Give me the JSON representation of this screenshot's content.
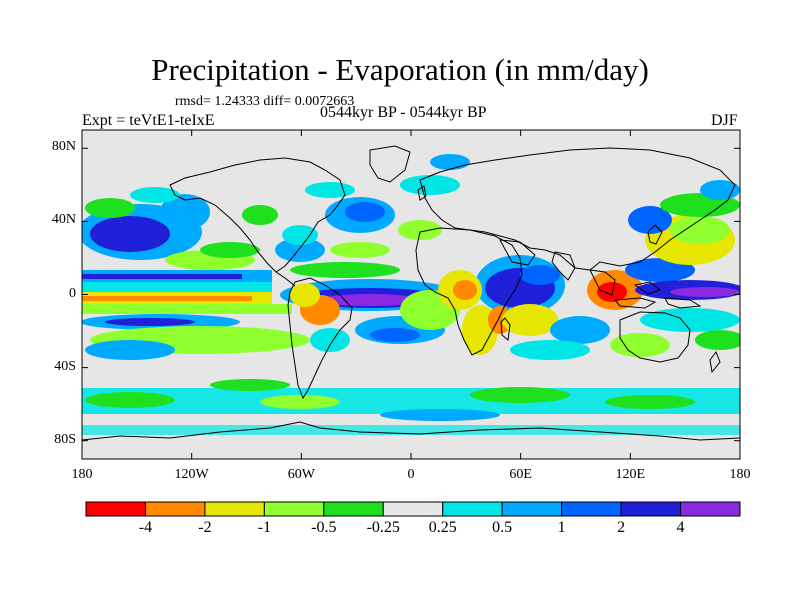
{
  "title": "Precipitation - Evaporation (in mm/day)",
  "subtitle": "rmsd= 1.24333 diff= 0.0072663",
  "left_label": "Expt = teVtE1-teIxE",
  "center_label": "0544kyr BP - 0544kyr BP",
  "right_label": "DJF",
  "lat_ticks": [
    {
      "value": 80,
      "label": "80N"
    },
    {
      "value": 40,
      "label": "40N"
    },
    {
      "value": 0,
      "label": "0"
    },
    {
      "value": -40,
      "label": "40S"
    },
    {
      "value": -80,
      "label": "80S"
    }
  ],
  "lon_ticks": [
    {
      "value": -180,
      "label": "180"
    },
    {
      "value": -120,
      "label": "120W"
    },
    {
      "value": -60,
      "label": "60W"
    },
    {
      "value": 0,
      "label": "0"
    },
    {
      "value": 60,
      "label": "60E"
    },
    {
      "value": 120,
      "label": "120E"
    },
    {
      "value": 180,
      "label": "180"
    }
  ],
  "colorbar": {
    "colors": [
      "#ff0000",
      "#ff8a00",
      "#e6e600",
      "#8fff2e",
      "#1ee01e",
      "#e6e6e6",
      "#00e6e6",
      "#00aaff",
      "#0064ff",
      "#2020d8",
      "#8a2be2"
    ],
    "labels": [
      "-4",
      "-2",
      "-1",
      "-0.5",
      "-0.25",
      "0.25",
      "0.5",
      "1",
      "2",
      "4"
    ]
  },
  "map": {
    "background": "#e6e6e6",
    "lon_range": [
      -180,
      180
    ],
    "lat_range": [
      -90,
      90
    ]
  }
}
